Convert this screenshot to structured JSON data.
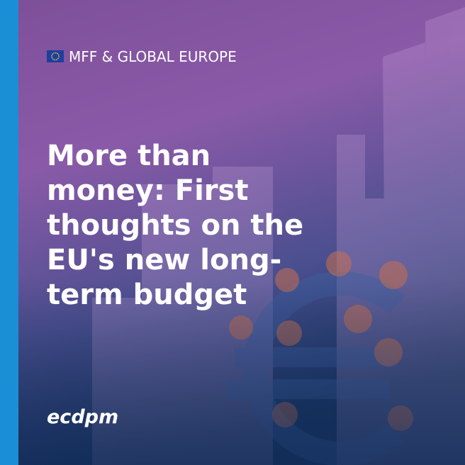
{
  "tag": "MFF & GLOBAL EUROPE",
  "title_lines": [
    "More than",
    "money: First",
    "thoughts on the",
    "EU's new long-",
    "term budget"
  ],
  "logo": "ecdpm"
}
